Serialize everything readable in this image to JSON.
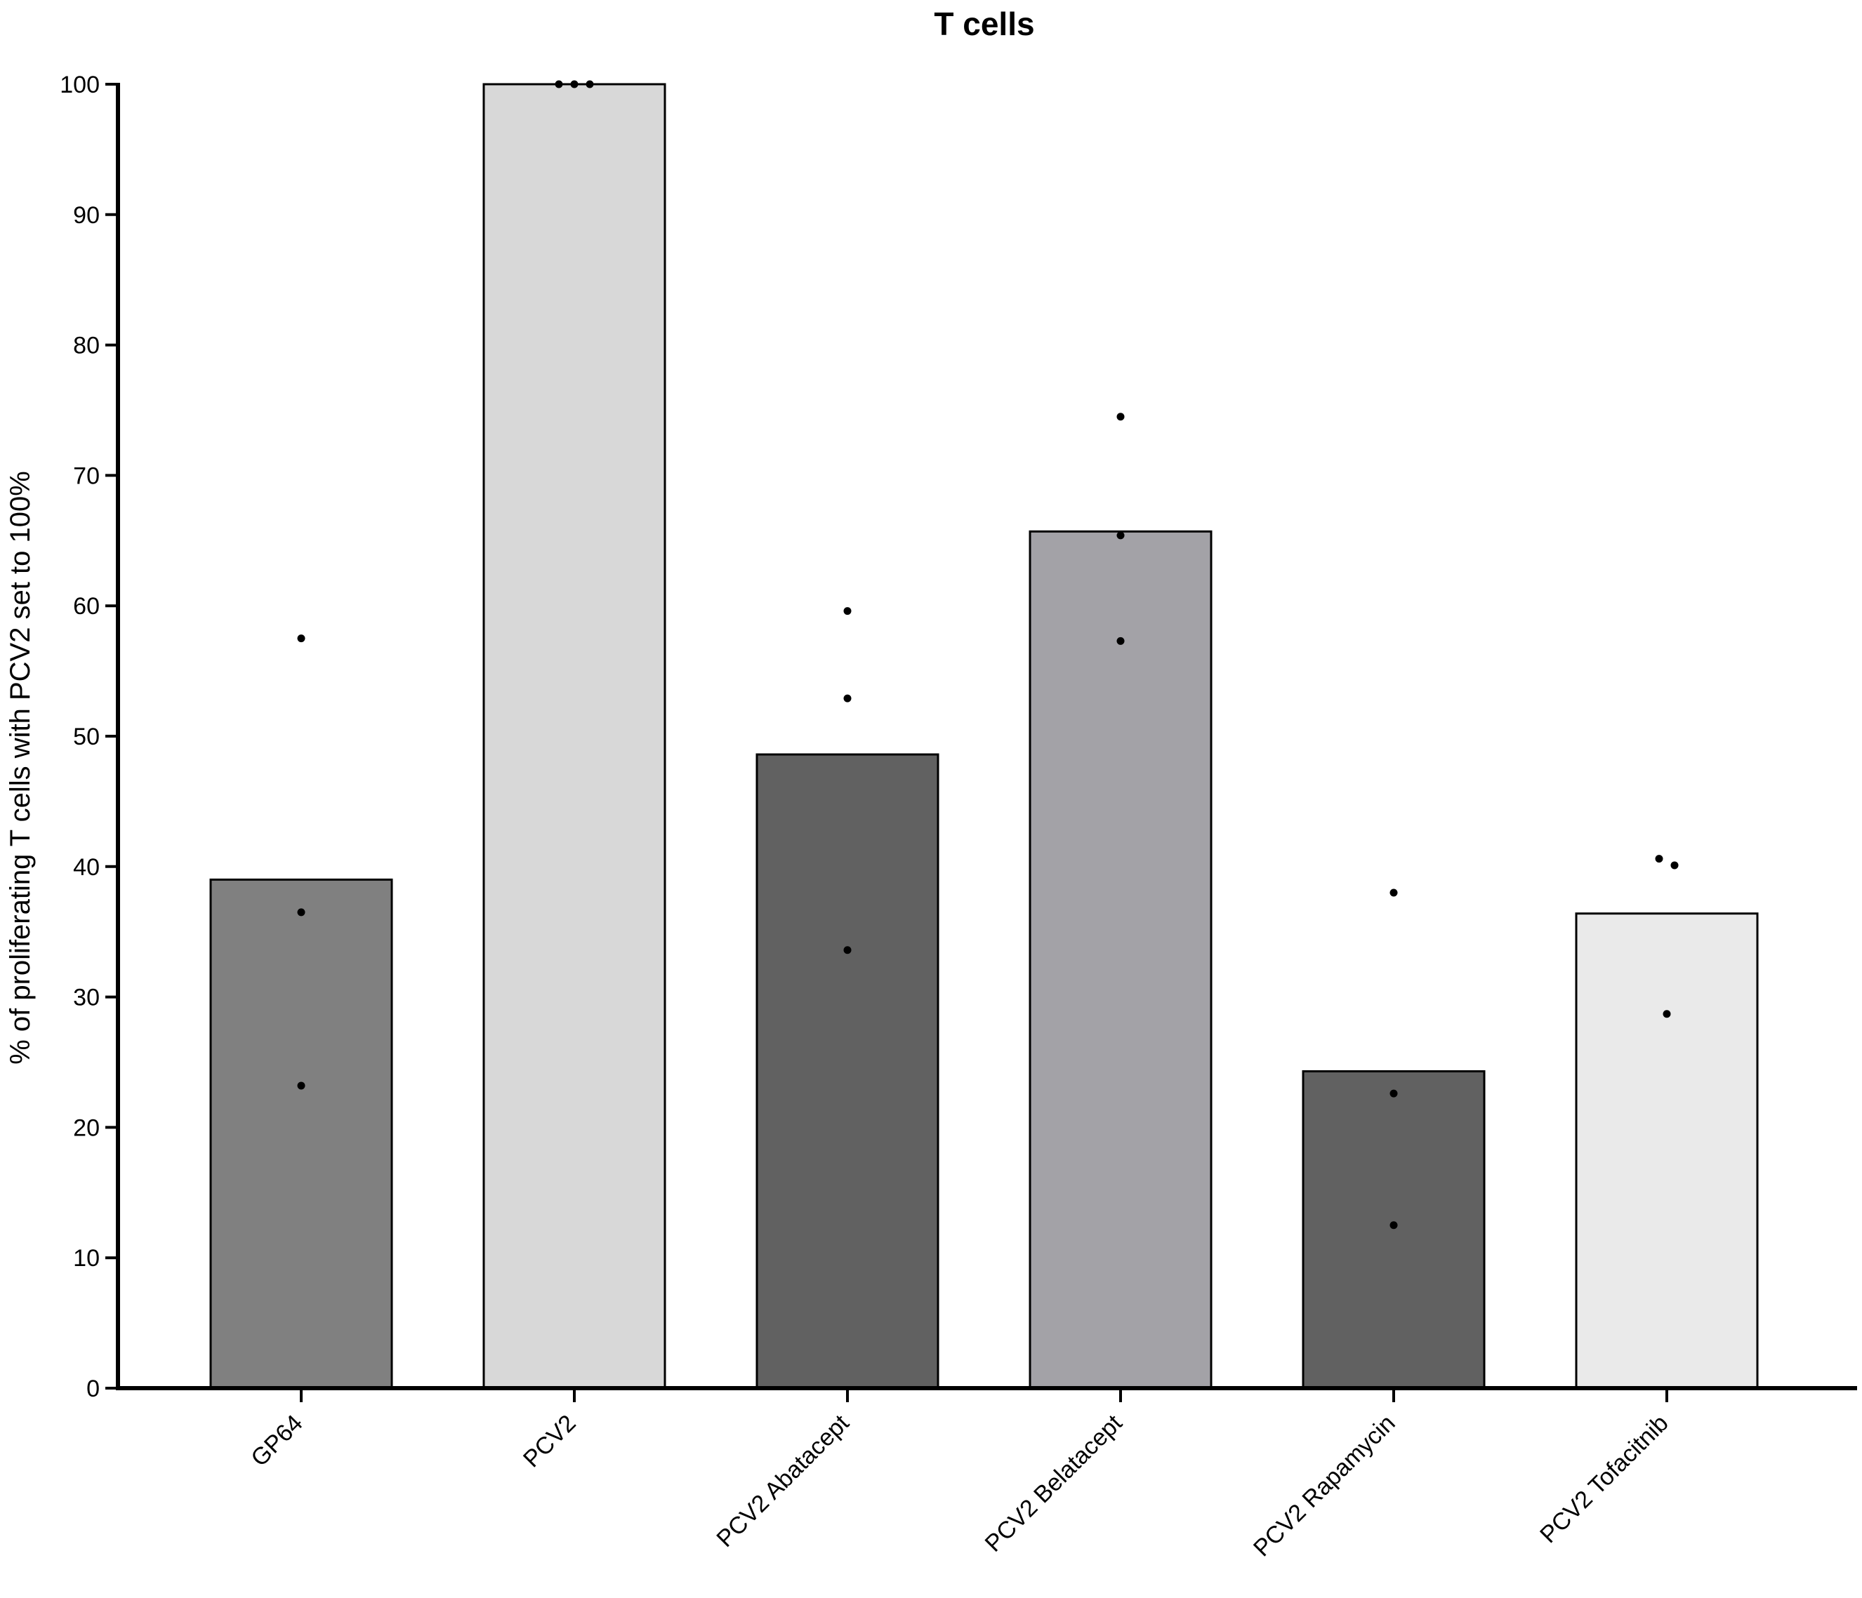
{
  "chart_data": {
    "type": "bar",
    "title": "T cells",
    "xlabel": "",
    "ylabel": "% of proliferating T cells with PCV2 set to 100%",
    "ylim": [
      0,
      100
    ],
    "yticks": [
      0,
      10,
      20,
      30,
      40,
      50,
      60,
      70,
      80,
      90,
      100
    ],
    "grid": false,
    "legend": "none",
    "categories": [
      "GP64",
      "PCV2",
      "PCV2 Abatacept",
      "PCV2 Belatacept",
      "PCV2 Rapamycin",
      "PCV2 Tofacitnib"
    ],
    "values": [
      39.0,
      100.0,
      48.6,
      65.7,
      24.3,
      36.4
    ],
    "colors": [
      "#808080",
      "#d8d8d8",
      "#616161",
      "#a3a2a7",
      "#616161",
      "#eaeaea"
    ],
    "points": [
      [
        57.5,
        36.5,
        23.2
      ],
      [
        100.0,
        100.0,
        100.0
      ],
      [
        59.6,
        52.9,
        33.6
      ],
      [
        74.5,
        65.4,
        57.3
      ],
      [
        38.0,
        22.6,
        12.5
      ],
      [
        40.6,
        40.1,
        28.7
      ]
    ]
  }
}
